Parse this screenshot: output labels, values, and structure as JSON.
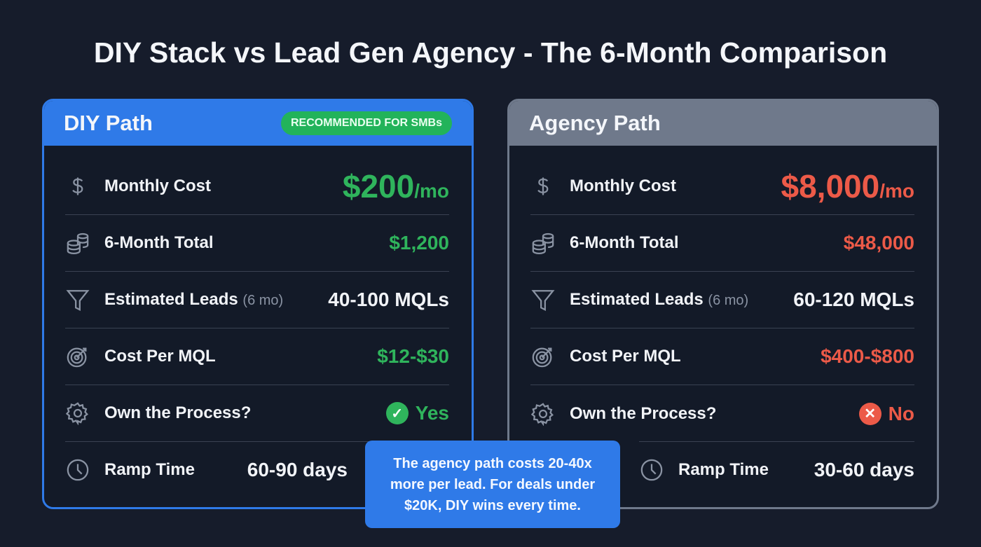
{
  "title": "DIY Stack vs Lead Gen Agency - The 6-Month Comparison",
  "colors": {
    "diy_accent": "#2f7ae8",
    "agency_header": "#6f798b",
    "positive": "#2fb45c",
    "negative": "#ec5a48",
    "badge": "#22b35a"
  },
  "diy": {
    "title": "DIY Path",
    "badge": "RECOMMENDED FOR SMBs",
    "monthly_cost": {
      "label": "Monthly Cost",
      "value": "$200",
      "unit": "/mo",
      "icon": "dollar-icon"
    },
    "total": {
      "label": "6-Month Total",
      "value": "$1,200",
      "icon": "coins-icon"
    },
    "leads": {
      "label": "Estimated Leads",
      "sub": "(6 mo)",
      "value": "40-100 MQLs",
      "icon": "funnel-icon"
    },
    "cpm": {
      "label": "Cost Per MQL",
      "value": "$12-$30",
      "icon": "target-icon"
    },
    "own": {
      "label": "Own the Process?",
      "value": "Yes",
      "icon": "gear-icon"
    },
    "ramp": {
      "label": "Ramp Time",
      "value": "60-90 days",
      "icon": "clock-icon"
    }
  },
  "agency": {
    "title": "Agency Path",
    "monthly_cost": {
      "label": "Monthly Cost",
      "value": "$8,000",
      "unit": "/mo",
      "icon": "dollar-icon"
    },
    "total": {
      "label": "6-Month Total",
      "value": "$48,000",
      "icon": "coins-icon"
    },
    "leads": {
      "label": "Estimated Leads",
      "sub": "(6 mo)",
      "value": "60-120 MQLs",
      "icon": "funnel-icon"
    },
    "cpm": {
      "label": "Cost Per MQL",
      "value": "$400-$800",
      "icon": "target-icon"
    },
    "own": {
      "label": "Own the Process?",
      "value": "No",
      "icon": "gear-icon"
    },
    "ramp": {
      "label": "Ramp Time",
      "value": "30-60 days",
      "icon": "clock-icon"
    }
  },
  "callout": "The agency path costs 20-40x more per lead. For deals under $20K, DIY wins every time."
}
